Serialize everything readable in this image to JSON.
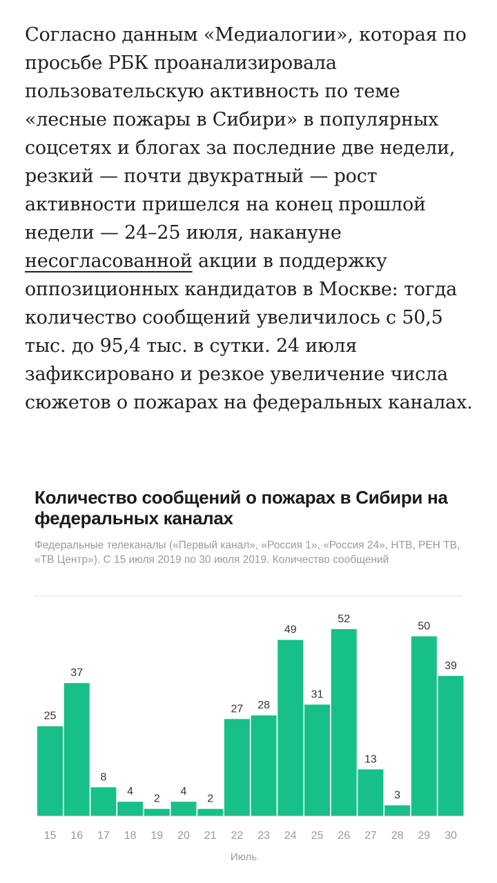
{
  "article": {
    "part1": "Согласно данным «Медиалогии», которая по просьбе РБК проанализировала пользовательскую активность по теме «лесные пожары в Сибири» в популярных соцсетях и блогах за последние две недели, резкий — почти двукратный — рост активности пришелся на конец прошлой недели — 24–25 июля, накануне ",
    "link": "несогласованной",
    "part2": " акции в поддержку оппозиционных кандидатов в Москве: тогда количество сообщений увеличилось с 50,5 тыс. до 95,4 тыс. в сутки. 24 июля зафиксировано и резкое увеличение числа сюжетов о пожарах на федеральных каналах."
  },
  "chart_data": {
    "type": "bar",
    "title": "Количество сообщений о пожарах в Сибири на федеральных каналах",
    "subtitle": "Федеральные телеканалы («Первый канал», «Россия 1», «Россия 24», НТВ, РЕН ТВ, «ТВ Центр»). С 15 июля 2019 по 30 июля 2019. Количество сообщений",
    "xlabel": "Июль",
    "ylabel": "",
    "categories": [
      "15",
      "16",
      "17",
      "18",
      "19",
      "20",
      "21",
      "22",
      "23",
      "24",
      "25",
      "26",
      "27",
      "28",
      "29",
      "30"
    ],
    "values": [
      25,
      37,
      8,
      4,
      2,
      4,
      2,
      27,
      28,
      49,
      31,
      52,
      13,
      3,
      50,
      39
    ],
    "ylim": [
      0,
      52
    ],
    "grid": false,
    "data_labels": true,
    "colors": {
      "bar": "#17bf89",
      "baseline": "#d9d9d9"
    }
  }
}
